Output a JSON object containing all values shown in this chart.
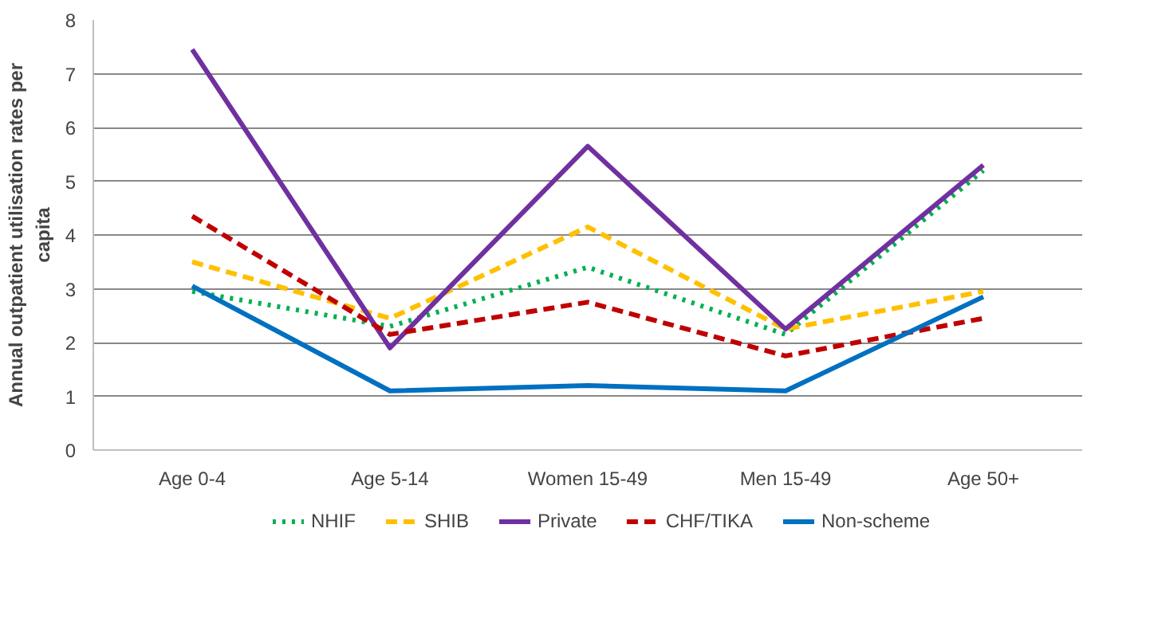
{
  "chart_data": {
    "type": "line",
    "ylabel": "Annual outpatient utilisation rates per capita",
    "categories": [
      "Age 0-4",
      "Age 5-14",
      "Women 15-49",
      "Men 15-49",
      "Age 50+"
    ],
    "series": [
      {
        "name": "NHIF",
        "color": "#00b050",
        "line_style": "dotted",
        "values": [
          2.95,
          2.3,
          3.4,
          2.15,
          5.2
        ]
      },
      {
        "name": "SHIB",
        "color": "#ffc000",
        "line_style": "dashed",
        "values": [
          3.5,
          2.45,
          4.15,
          2.25,
          2.95
        ]
      },
      {
        "name": "Private",
        "color": "#7030a0",
        "line_style": "solid",
        "values": [
          7.45,
          1.9,
          5.65,
          2.25,
          5.3
        ]
      },
      {
        "name": "CHF/TIKA",
        "color": "#c00000",
        "line_style": "dashed",
        "values": [
          4.35,
          2.15,
          2.75,
          1.75,
          2.45
        ]
      },
      {
        "name": "Non-scheme",
        "color": "#0070c0",
        "line_style": "solid",
        "values": [
          3.05,
          1.1,
          1.2,
          1.1,
          2.85
        ]
      }
    ],
    "ylim": [
      0,
      8
    ],
    "yticks": [
      0,
      1,
      2,
      3,
      4,
      5,
      6,
      7,
      8
    ],
    "grid": "y",
    "legend": "bottom",
    "marker": "none"
  }
}
